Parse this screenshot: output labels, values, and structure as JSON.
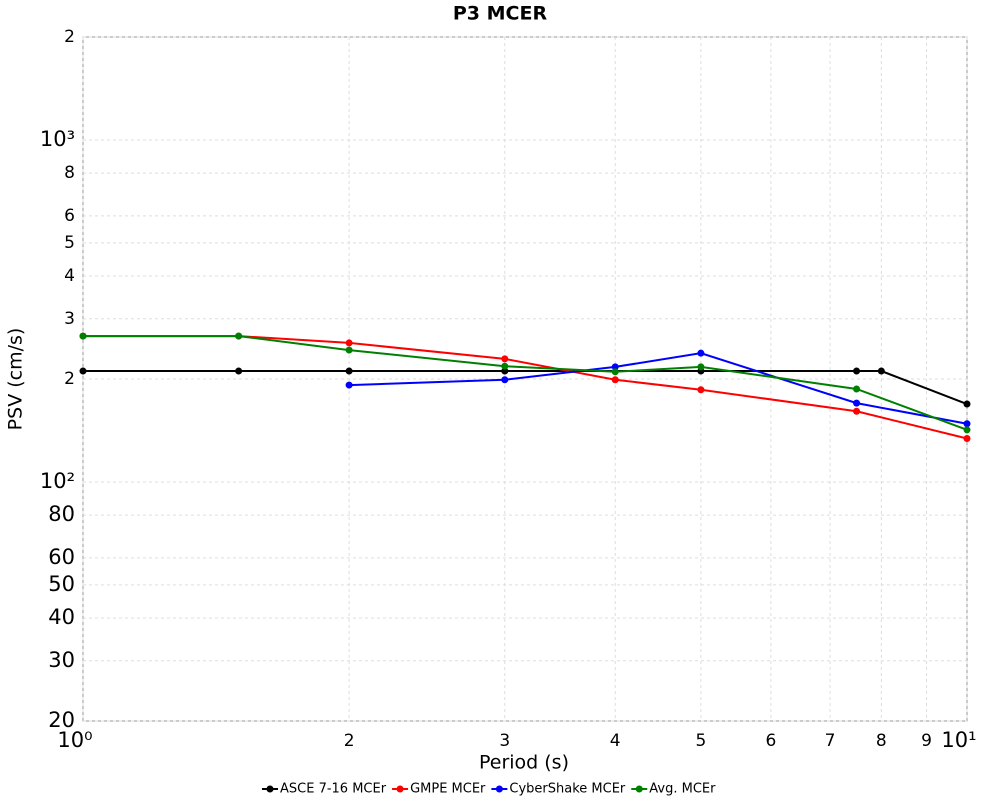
{
  "chart_data": {
    "type": "line",
    "title": "P3 MCER",
    "xlabel": "Period (s)",
    "ylabel": "PSV (cm/s)",
    "xscale": "log",
    "yscale": "log",
    "grid": true,
    "legend": "bottom",
    "xlim": [
      1,
      10
    ],
    "ylim": [
      20,
      2000
    ],
    "xticks": [
      {
        "value": 1,
        "label": "10⁰"
      },
      2,
      3,
      4,
      5,
      6,
      7,
      8,
      9,
      {
        "value": 10,
        "label": "10¹"
      }
    ],
    "yticks": [
      20,
      30,
      40,
      50,
      60,
      80,
      {
        "value": 100,
        "label": "10²"
      },
      {
        "value": 200,
        "label": "2"
      },
      {
        "value": 300,
        "label": "3"
      },
      {
        "value": 400,
        "label": "4"
      },
      {
        "value": 500,
        "label": "5"
      },
      {
        "value": 600,
        "label": "6"
      },
      {
        "value": 800,
        "label": "8"
      },
      {
        "value": 1000,
        "label": "10³"
      },
      {
        "value": 2000,
        "label": "2"
      }
    ],
    "series": [
      {
        "name": "ASCE 7-16 MCEr",
        "color": "#000000",
        "x": [
          1,
          1.5,
          2,
          3,
          5,
          7.5,
          8,
          10
        ],
        "values": [
          211,
          211,
          211,
          211,
          211,
          211,
          211,
          169
        ]
      },
      {
        "name": "GMPE MCEr",
        "color": "#ff0000",
        "x": [
          1,
          1.5,
          2,
          3,
          4,
          5,
          7.5,
          10
        ],
        "values": [
          267,
          267,
          255,
          229,
          199,
          186,
          161,
          134
        ]
      },
      {
        "name": "CyberShake MCEr",
        "color": "#0000ff",
        "x": [
          2,
          3,
          4,
          5,
          7.5,
          10
        ],
        "values": [
          192,
          199,
          217,
          238,
          170,
          148
        ]
      },
      {
        "name": "Avg. MCEr",
        "color": "#008000",
        "x": [
          1,
          1.5,
          2,
          3,
          4,
          5,
          7.5,
          10
        ],
        "values": [
          267,
          267,
          243,
          218,
          210,
          217,
          187,
          142
        ]
      }
    ]
  }
}
